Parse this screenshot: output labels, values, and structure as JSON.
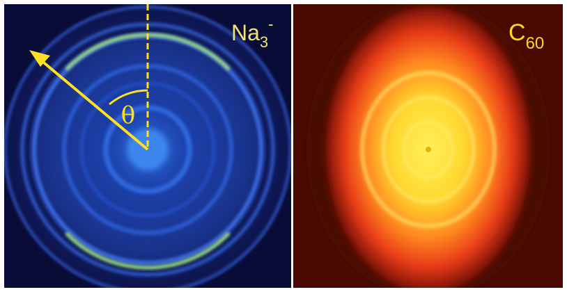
{
  "left_panel": {
    "label": {
      "base": "Na",
      "sub": "3",
      "sup": "-"
    },
    "angle_label": "θ"
  },
  "right_panel": {
    "label": {
      "base": "C",
      "sub": "60"
    }
  }
}
